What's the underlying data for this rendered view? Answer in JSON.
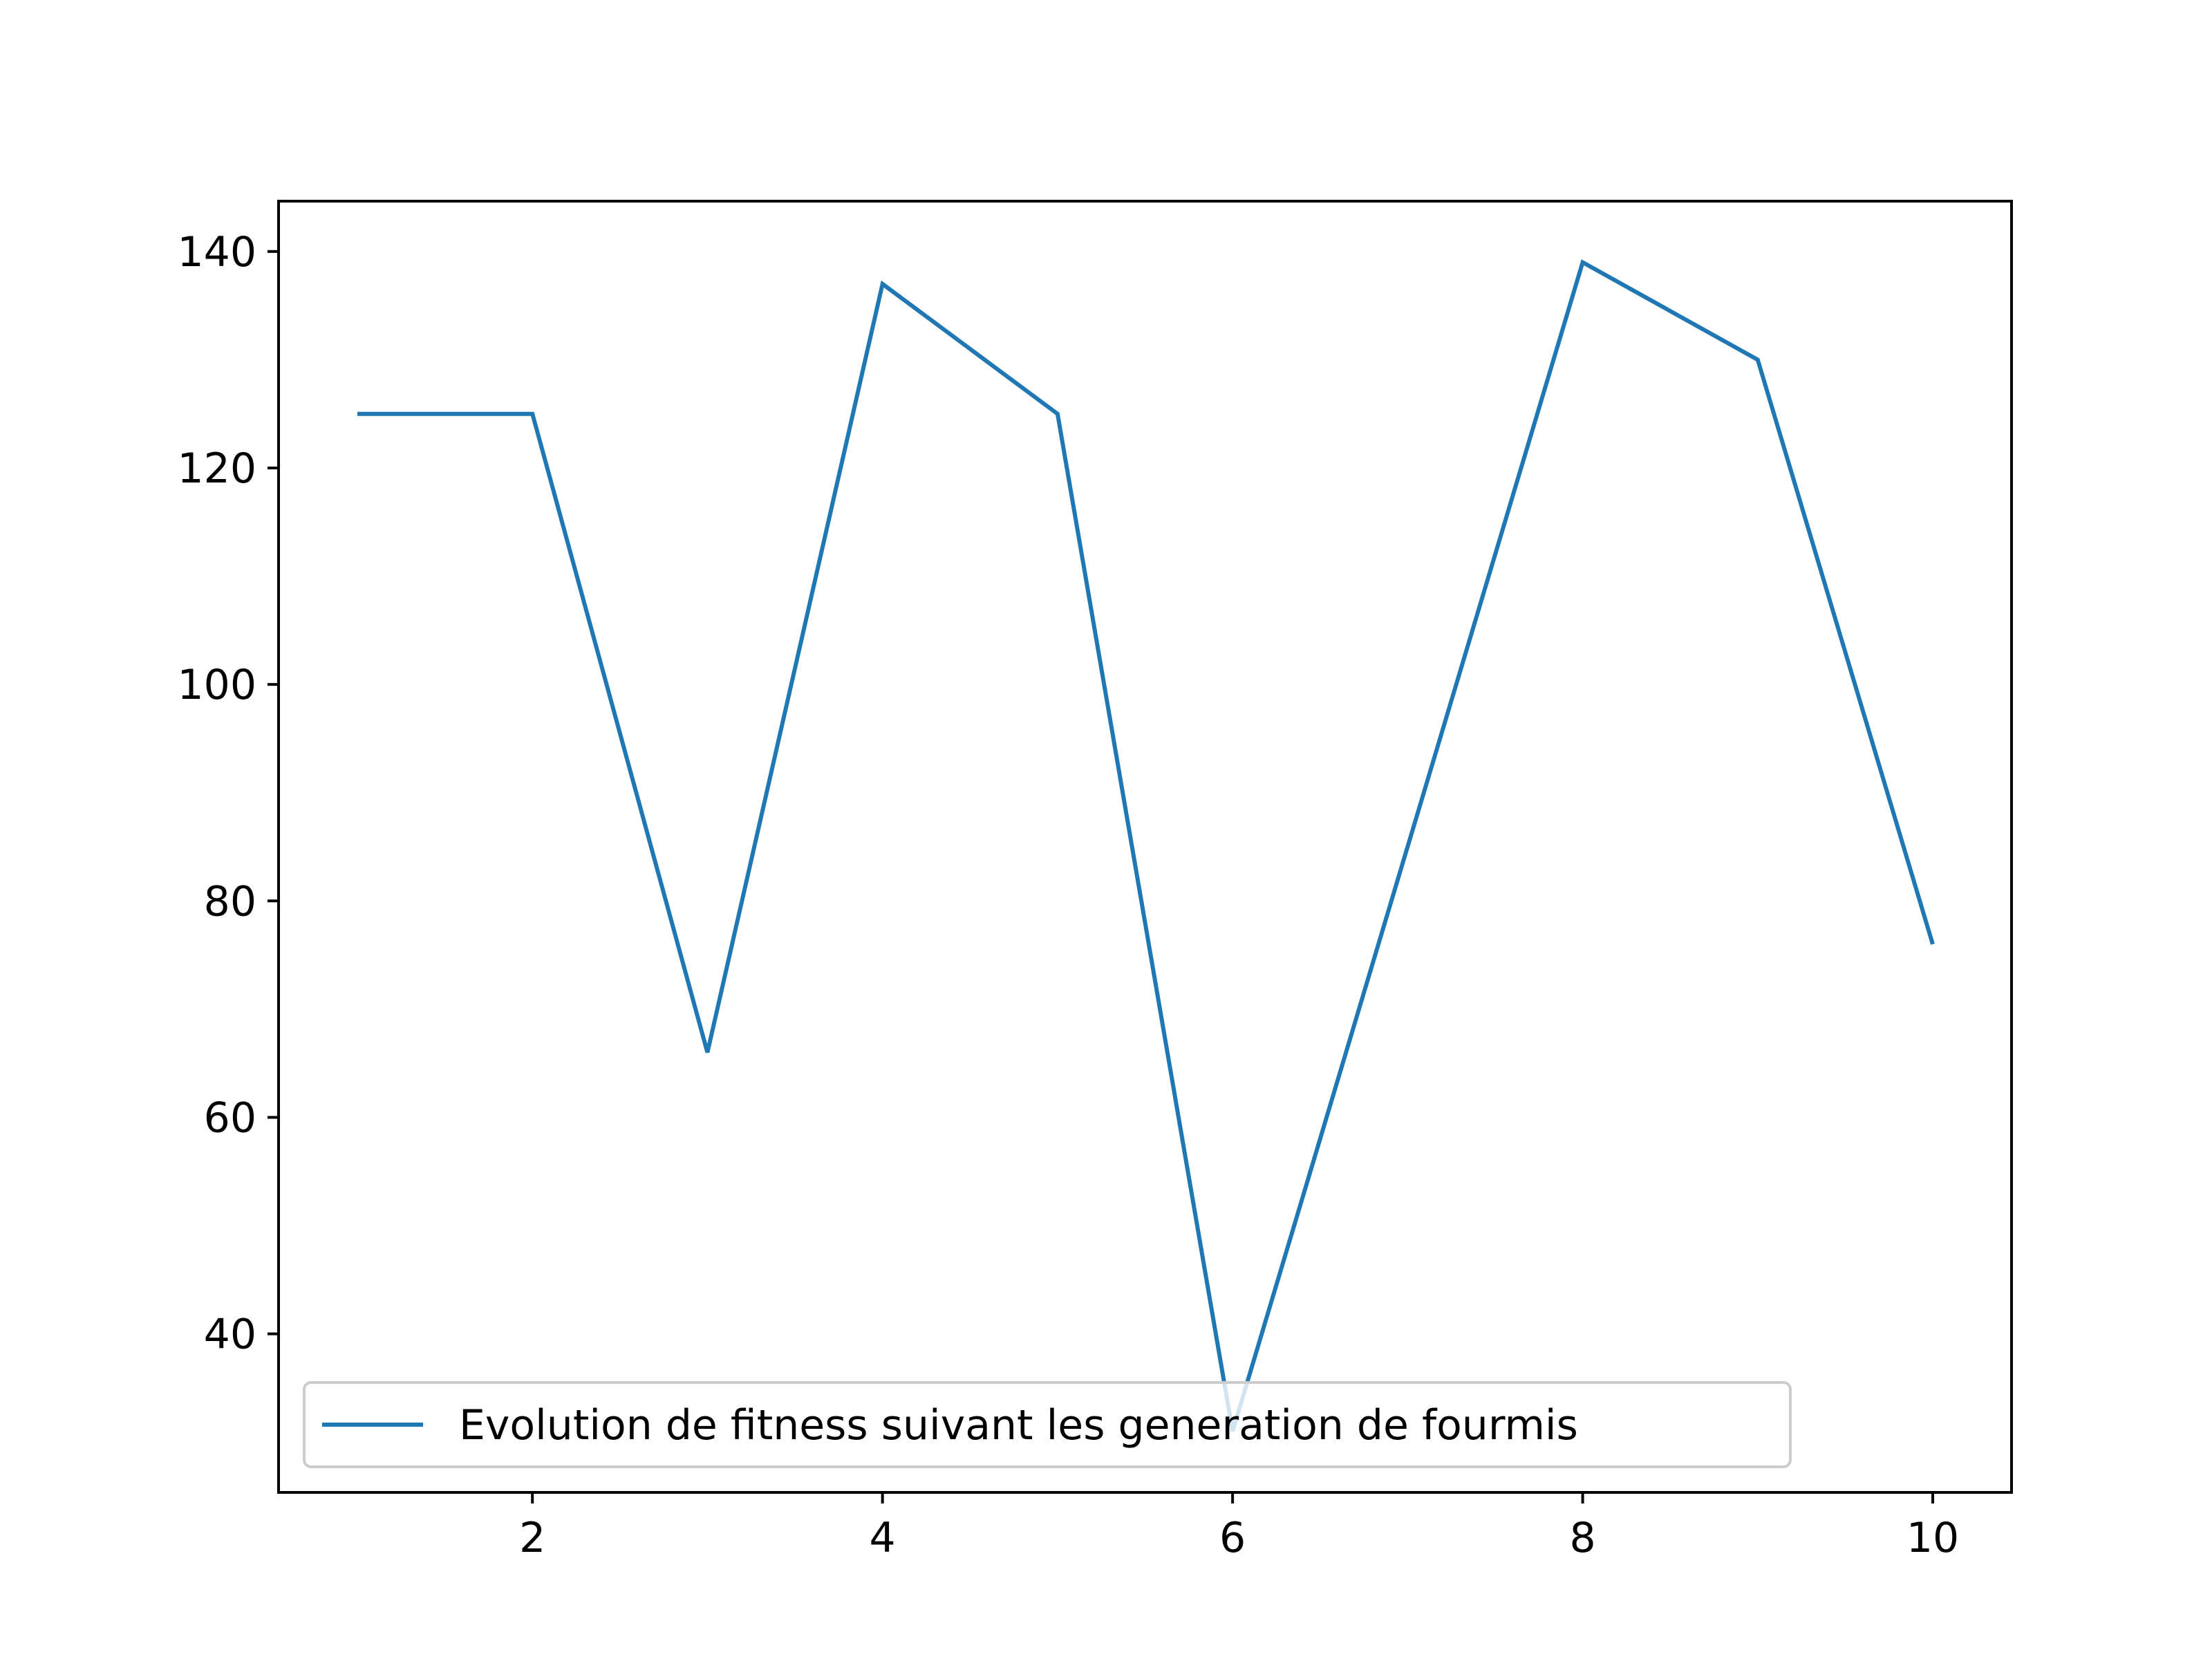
{
  "chart_data": {
    "type": "line",
    "title": "",
    "xlabel": "",
    "ylabel": "",
    "xlim": [
      0.55,
      10.45
    ],
    "ylim": [
      25.35,
      144.65
    ],
    "x_ticks": [
      2,
      4,
      6,
      8,
      10
    ],
    "y_ticks": [
      40,
      60,
      80,
      100,
      120,
      140
    ],
    "grid": false,
    "legend_position": "lower-left",
    "series": [
      {
        "name": "Evolution de fitness suivant les generation de fourmis",
        "color": "#1f77b4",
        "x": [
          1,
          2,
          3,
          4,
          5,
          6,
          7,
          8,
          9,
          10
        ],
        "y": [
          125,
          125,
          66,
          137,
          125,
          31,
          85,
          139,
          130,
          76
        ]
      }
    ]
  }
}
